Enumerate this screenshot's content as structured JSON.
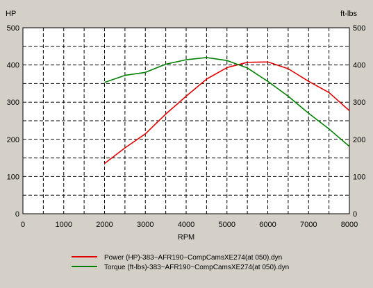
{
  "chart_data": {
    "type": "line",
    "xlabel": "RPM",
    "ylabel_left": "HP",
    "ylabel_right": "ft-lbs",
    "xlim": [
      0,
      8000
    ],
    "ylim": [
      0,
      500
    ],
    "x_ticks": [
      "0",
      "1000",
      "2000",
      "3000",
      "4000",
      "5000",
      "6000",
      "7000",
      "8000"
    ],
    "y_ticks": [
      "0",
      "100",
      "200",
      "300",
      "400",
      "500"
    ],
    "grid": true,
    "grid_style": "dashed",
    "legend_position": "bottom",
    "x": [
      2000,
      2500,
      3000,
      3500,
      4000,
      4500,
      5000,
      5500,
      6000,
      6500,
      7000,
      7500,
      8000
    ],
    "series": [
      {
        "name": "Power (HP)-383~AFR190~CompCamsXE274(at 050).dyn",
        "color": "#e00000",
        "values": [
          135,
          177,
          215,
          268,
          316,
          362,
          393,
          407,
          408,
          390,
          356,
          326,
          277
        ]
      },
      {
        "name": "Torque (ft-lbs)-383~AFR190~CompCamsXE274(at 050).dyn",
        "color": "#008000",
        "values": [
          353,
          372,
          380,
          402,
          414,
          420,
          412,
          392,
          356,
          316,
          270,
          228,
          181
        ]
      }
    ]
  }
}
